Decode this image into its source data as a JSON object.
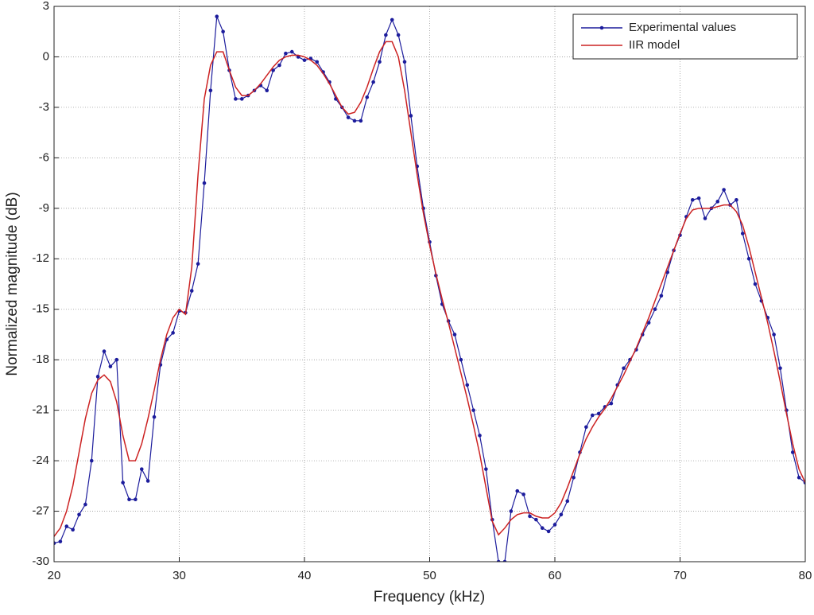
{
  "chart_data": {
    "type": "line",
    "xlabel": "Frequency (kHz)",
    "ylabel": "Normalized magnitude (dB)",
    "x": [
      20,
      20.5,
      21,
      21.5,
      22,
      22.5,
      23,
      23.5,
      24,
      24.5,
      25,
      25.5,
      26,
      26.5,
      27,
      27.5,
      28,
      28.5,
      29,
      29.5,
      30,
      30.5,
      31,
      31.5,
      32,
      32.5,
      33,
      33.5,
      34,
      34.5,
      35,
      35.5,
      36,
      36.5,
      37,
      37.5,
      38,
      38.5,
      39,
      39.5,
      40,
      40.5,
      41,
      41.5,
      42,
      42.5,
      43,
      43.5,
      44,
      44.5,
      45,
      45.5,
      46,
      46.5,
      47,
      47.5,
      48,
      48.5,
      49,
      49.5,
      50,
      50.5,
      51,
      51.5,
      52,
      52.5,
      53,
      53.5,
      54,
      54.5,
      55,
      55.5,
      56,
      56.5,
      57,
      57.5,
      58,
      58.5,
      59,
      59.5,
      60,
      60.5,
      61,
      61.5,
      62,
      62.5,
      63,
      63.5,
      64,
      64.5,
      65,
      65.5,
      66,
      66.5,
      67,
      67.5,
      68,
      68.5,
      69,
      69.5,
      70,
      70.5,
      71,
      71.5,
      72,
      72.5,
      73,
      73.5,
      74,
      74.5,
      75,
      75.5,
      76,
      76.5,
      77,
      77.5,
      78,
      78.5,
      79,
      79.5,
      80
    ],
    "series": [
      {
        "name": "Experimental values",
        "color": "#1c1c9c",
        "marker": true,
        "values": [
          -28.9,
          -28.8,
          -27.9,
          -28.1,
          -27.2,
          -26.6,
          -24,
          -19,
          -17.5,
          -18.4,
          -18,
          -25.3,
          -26.3,
          -26.3,
          -24.5,
          -25.2,
          -21.4,
          -18.3,
          -16.8,
          -16.4,
          -15.1,
          -15.2,
          -13.9,
          -12.3,
          -7.5,
          -2,
          2.4,
          1.5,
          -0.8,
          -2.5,
          -2.5,
          -2.3,
          -2,
          -1.7,
          -2,
          -0.8,
          -0.5,
          0.2,
          0.3,
          0,
          -0.2,
          -0.1,
          -0.3,
          -0.9,
          -1.5,
          -2.5,
          -3,
          -3.6,
          -3.8,
          -3.8,
          -2.4,
          -1.5,
          -0.3,
          1.3,
          2.2,
          1.3,
          -0.3,
          -3.5,
          -6.5,
          -9,
          -11,
          -13,
          -14.7,
          -15.7,
          -16.5,
          -18,
          -19.5,
          -21,
          -22.5,
          -24.5,
          -27.5,
          -30,
          -30,
          -27,
          -25.8,
          -26,
          -27.3,
          -27.5,
          -28,
          -28.2,
          -27.8,
          -27.2,
          -26.4,
          -25,
          -23.5,
          -22,
          -21.3,
          -21.2,
          -20.8,
          -20.6,
          -19.5,
          -18.5,
          -18,
          -17.4,
          -16.5,
          -15.8,
          -15,
          -14.2,
          -12.8,
          -11.5,
          -10.6,
          -9.5,
          -8.5,
          -8.4,
          -9.6,
          -9,
          -8.6,
          -7.9,
          -8.8,
          -8.5,
          -10.5,
          -12,
          -13.5,
          -14.5,
          -15.5,
          -16.5,
          -18.5,
          -21,
          -23.5,
          -25,
          -25.3
        ]
      },
      {
        "name": "IIR model",
        "color": "#cc2222",
        "marker": false,
        "values": [
          -28.5,
          -28,
          -27,
          -25.5,
          -23.5,
          -21.5,
          -20,
          -19.2,
          -18.9,
          -19.3,
          -20.5,
          -22.5,
          -24,
          -24,
          -23,
          -21.5,
          -19.8,
          -18,
          -16.5,
          -15.5,
          -15,
          -15.3,
          -12.5,
          -7,
          -2.5,
          -0.5,
          0.3,
          0.3,
          -0.8,
          -1.8,
          -2.3,
          -2.3,
          -2,
          -1.6,
          -1.1,
          -0.6,
          -0.2,
          0,
          0.1,
          0.1,
          0,
          -0.2,
          -0.5,
          -1,
          -1.6,
          -2.3,
          -3,
          -3.4,
          -3.3,
          -2.7,
          -1.8,
          -0.7,
          0.3,
          0.9,
          0.9,
          0,
          -2,
          -4.5,
          -7,
          -9.3,
          -11.2,
          -12.9,
          -14.4,
          -15.8,
          -17.3,
          -18.8,
          -20.3,
          -21.9,
          -23.6,
          -25.6,
          -27.6,
          -28.4,
          -28,
          -27.5,
          -27.2,
          -27.1,
          -27.1,
          -27.3,
          -27.4,
          -27.4,
          -27.1,
          -26.5,
          -25.6,
          -24.6,
          -23.6,
          -22.7,
          -22,
          -21.4,
          -20.9,
          -20.3,
          -19.6,
          -18.9,
          -18.1,
          -17.3,
          -16.4,
          -15.5,
          -14.5,
          -13.5,
          -12.5,
          -11.5,
          -10.5,
          -9.6,
          -9.1,
          -9,
          -9,
          -9,
          -8.9,
          -8.8,
          -8.8,
          -9.2,
          -10,
          -11.3,
          -12.8,
          -14.3,
          -15.8,
          -17.5,
          -19.3,
          -21.2,
          -23,
          -24.5,
          -25.3
        ]
      }
    ],
    "xlim": [
      20,
      80
    ],
    "xticks": [
      20,
      30,
      40,
      50,
      60,
      70,
      80
    ],
    "ylim": [
      -30,
      3
    ],
    "yticks": [
      -30,
      -27,
      -24,
      -21,
      -18,
      -15,
      -12,
      -9,
      -6,
      -3,
      0,
      3
    ],
    "grid": true,
    "legend": "upper right"
  }
}
